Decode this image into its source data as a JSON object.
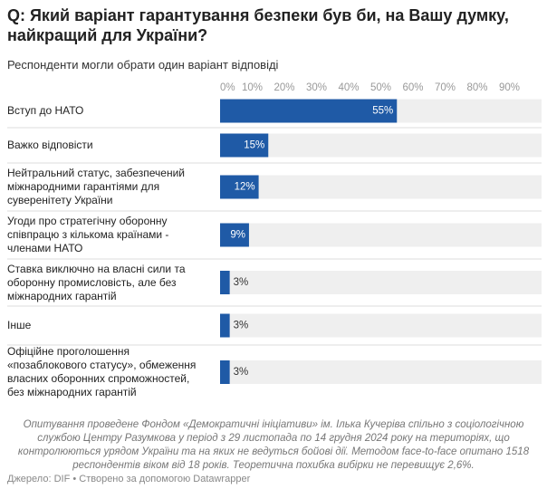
{
  "chart_data": {
    "type": "bar",
    "title": "Q: Який варіант гарантування безпеки був би, на Вашу думку, найкращий для України?",
    "subtitle": "Респонденти могли обрати один варіант відповіді",
    "categories": [
      "Вступ до НАТО",
      "Важко відповісти",
      "Нейтральний статус, забезпечений міжнародними гарантіями для суверенітету України",
      "Угоди про стратегічну оборонну співпрацю з кількома країнами - членами НАТО",
      "Ставка виключно на власні сили та оборонну промисловість, але без міжнародних гарантій",
      "Інше",
      "Офіційне проголошення «позаблокового статусу», обмеження власних оборонних спроможностей, без міжнародних гарантій"
    ],
    "values": [
      55,
      15,
      12,
      9,
      3,
      3,
      3
    ],
    "value_labels": [
      "55%",
      "15%",
      "12%",
      "9%",
      "3%",
      "3%",
      "3%"
    ],
    "color": "#1f5aa6",
    "xlim": [
      0,
      100
    ],
    "xticks": [
      {
        "value": 0,
        "label": "0%"
      },
      {
        "value": 10,
        "label": "10%"
      },
      {
        "value": 20,
        "label": "20%"
      },
      {
        "value": 30,
        "label": "30%"
      },
      {
        "value": 40,
        "label": "40%"
      },
      {
        "value": 50,
        "label": "50%"
      },
      {
        "value": 60,
        "label": "60%"
      },
      {
        "value": 70,
        "label": "70%"
      },
      {
        "value": 80,
        "label": "80%"
      },
      {
        "value": 90,
        "label": "90%"
      }
    ],
    "notes": "Опитування проведене Фондом «Демократичні ініціативи» ім. Ілька Кучеріва спільно з соціологічною службою Центру Разумкова у період з 29 листопада по 14 грудня 2024 року на територіях, що контролюються урядом України та на яких не ведуться бойові дії. Методом face-to-face опитано 1518 респондентів віком від 18 років. Теоретична похибка вибірки не перевищує 2,6%.",
    "source": "Джерело: DIF • Створено за допомогою Datawrapper"
  }
}
